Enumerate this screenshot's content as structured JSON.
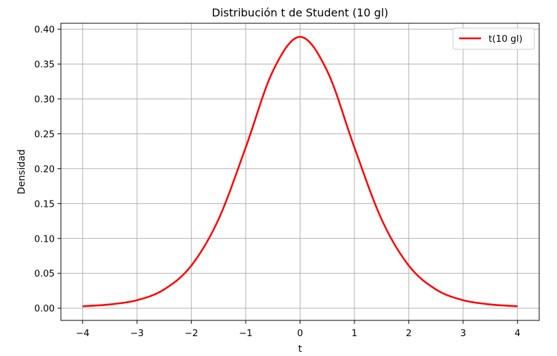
{
  "chart_data": {
    "type": "line",
    "title": "Distribución t de Student (10 gl)",
    "xlabel": "t",
    "ylabel": "Densidad",
    "xlim": [
      -4.4,
      4.4
    ],
    "ylim": [
      -0.0175,
      0.4085
    ],
    "x_ticks": [
      -4,
      -3,
      -2,
      -1,
      0,
      1,
      2,
      3,
      4
    ],
    "x_tick_labels": [
      "−4",
      "−3",
      "−2",
      "−1",
      "0",
      "1",
      "2",
      "3",
      "4"
    ],
    "y_ticks": [
      0.0,
      0.05,
      0.1,
      0.15,
      0.2,
      0.25,
      0.3,
      0.35,
      0.4
    ],
    "y_tick_labels": [
      "0.00",
      "0.05",
      "0.10",
      "0.15",
      "0.20",
      "0.25",
      "0.30",
      "0.35",
      "0.40"
    ],
    "grid": true,
    "legend_position": "top-right",
    "series": [
      {
        "name": "t(10 gl)",
        "color": "#ff0000",
        "x": [
          -4,
          -3.5,
          -3,
          -2.5,
          -2,
          -1.5,
          -1,
          -0.5,
          0,
          0.5,
          1,
          1.5,
          2,
          2.5,
          3,
          3.5,
          4
        ],
        "y": [
          0.0028,
          0.0054,
          0.0114,
          0.0269,
          0.0611,
          0.1274,
          0.2304,
          0.34,
          0.3891,
          0.34,
          0.2304,
          0.1274,
          0.0611,
          0.0269,
          0.0114,
          0.0054,
          0.0028
        ]
      }
    ]
  }
}
